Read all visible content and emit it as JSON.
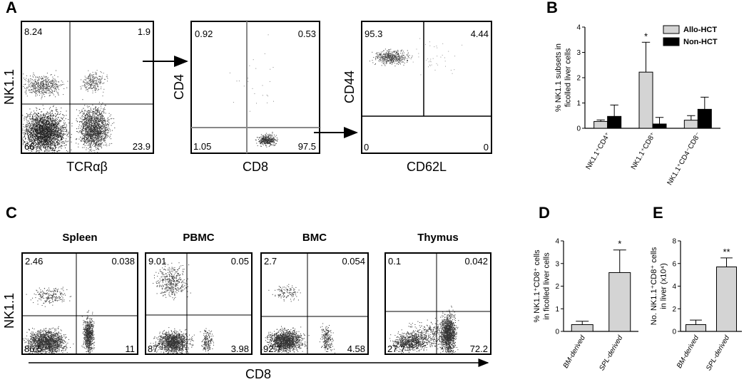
{
  "panel_labels": {
    "A": "A",
    "B": "B",
    "C": "C",
    "D": "D",
    "E": "E"
  },
  "panel_a": {
    "plots": [
      {
        "x_label": "TCRαβ",
        "y_label": "NK1.1",
        "quadrants": {
          "ul": "8.24",
          "ur": "1.9",
          "ll": "66",
          "lr": "23.9"
        }
      },
      {
        "x_label": "CD8",
        "y_label": "CD4",
        "quadrants": {
          "ul": "0.92",
          "ur": "0.53",
          "ll": "1.05",
          "lr": "97.5"
        }
      },
      {
        "x_label": "CD62L",
        "y_label": "CD44",
        "quadrants": {
          "ul": "95.3",
          "ur": "4.44",
          "ll": "0",
          "lr": "0"
        }
      }
    ]
  },
  "panel_c": {
    "y_label": "NK1.1",
    "x_label": "CD8",
    "plots": [
      {
        "title": "Spleen",
        "quadrants": {
          "ul": "2.46",
          "ur": "0.038",
          "ll": "86.5",
          "lr": "11"
        }
      },
      {
        "title": "PBMC",
        "quadrants": {
          "ul": "9.01",
          "ur": "0.05",
          "ll": "87",
          "lr": "3.98"
        }
      },
      {
        "title": "BMC",
        "quadrants": {
          "ul": "2.7",
          "ur": "0.054",
          "ll": "92.7",
          "lr": "4.58"
        }
      },
      {
        "title": "Thymus",
        "quadrants": {
          "ul": "0.1",
          "ur": "0.042",
          "ll": "27.7",
          "lr": "72.2"
        }
      }
    ]
  },
  "chart_data": [
    {
      "id": "B",
      "type": "bar",
      "ylabel_line1": "% NK1.1 subsets in",
      "ylabel_line2": "ficolled liver cells",
      "ylim": [
        0,
        4
      ],
      "yticks": [
        "0",
        "1",
        "2",
        "3",
        "4"
      ],
      "categories": [
        "NK1.1⁺CD4⁺",
        "NK1.1⁺CD8⁺",
        "NK1.1⁺CD4⁻CD8⁻"
      ],
      "series": [
        {
          "name": "Allo-HCT",
          "color": "#d4d4d4",
          "values": [
            0.27,
            2.22,
            0.32
          ],
          "errors": [
            0.06,
            1.18,
            0.18
          ]
        },
        {
          "name": "Non-HCT",
          "color": "#000000",
          "values": [
            0.47,
            0.17,
            0.75
          ],
          "errors": [
            0.45,
            0.26,
            0.48
          ]
        }
      ],
      "annotations": [
        {
          "text": "*",
          "category": 1,
          "series": 0
        }
      ]
    },
    {
      "id": "D",
      "type": "bar",
      "ylabel_line1": "% NK1.1⁺CD8⁺ cells",
      "ylabel_line2": "in ficolled liver cells",
      "ylim": [
        0,
        4
      ],
      "yticks": [
        "0",
        "1",
        "2",
        "3",
        "4"
      ],
      "categories": [
        "BM-derived",
        "SPL-derived"
      ],
      "values": [
        0.3,
        2.6
      ],
      "errors": [
        0.15,
        1.0
      ],
      "color": "#d4d4d4",
      "annotations": [
        {
          "text": "*",
          "category": 1
        }
      ]
    },
    {
      "id": "E",
      "type": "bar",
      "ylabel_line1": "No. NK1.1⁺CD8⁺ cells",
      "ylabel_line2": "in liver (x10⁴)",
      "ylim": [
        0,
        8
      ],
      "yticks": [
        "0",
        "2",
        "4",
        "6",
        "8"
      ],
      "categories": [
        "BM-derived",
        "SPL-derived"
      ],
      "values": [
        0.6,
        5.7
      ],
      "errors": [
        0.4,
        0.8
      ],
      "color": "#d4d4d4",
      "annotations": [
        {
          "text": "**",
          "category": 1
        }
      ]
    }
  ]
}
